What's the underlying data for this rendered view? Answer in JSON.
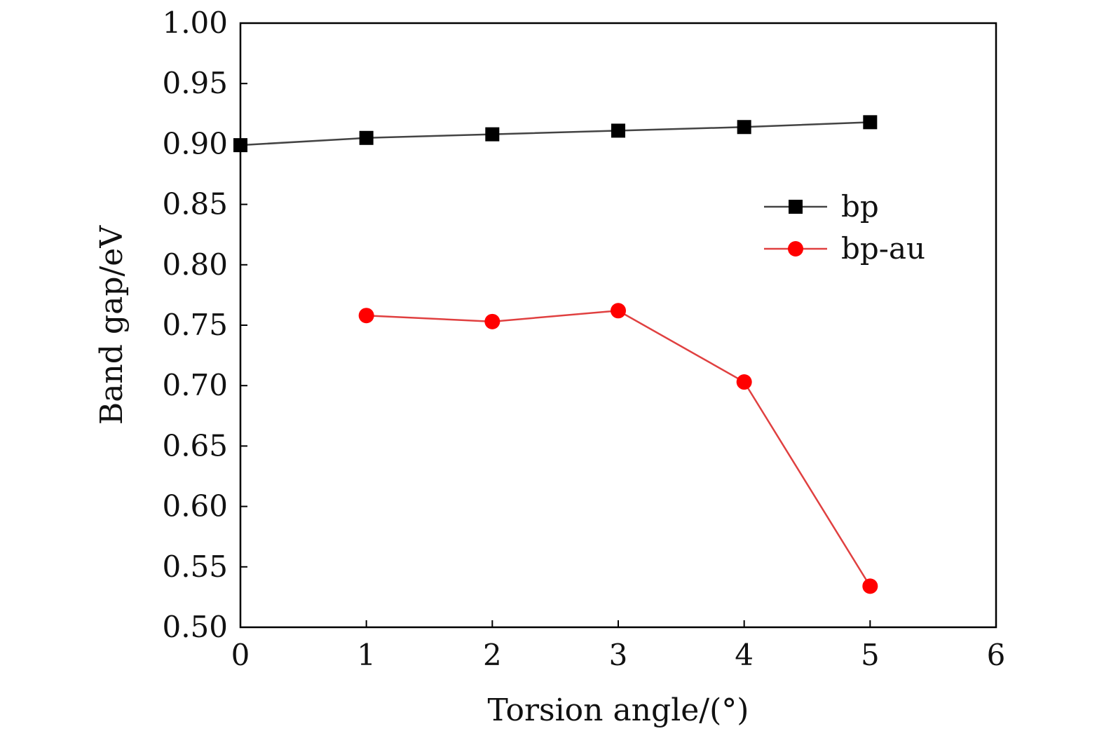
{
  "chart_data": {
    "type": "line",
    "title": "",
    "xlabel": "Torsion angle/(°)",
    "ylabel": "Band gap/eV",
    "xlim": [
      0,
      6
    ],
    "ylim": [
      0.5,
      1.0
    ],
    "x_ticks": [
      0,
      1,
      2,
      3,
      4,
      5,
      6
    ],
    "x_tick_labels": [
      "0",
      "1",
      "2",
      "3",
      "4",
      "5",
      "6"
    ],
    "y_ticks": [
      0.5,
      0.55,
      0.6,
      0.65,
      0.7,
      0.75,
      0.8,
      0.85,
      0.9,
      0.95,
      1.0
    ],
    "y_tick_labels": [
      "0.50",
      "0.55",
      "0.60",
      "0.65",
      "0.70",
      "0.75",
      "0.80",
      "0.85",
      "0.90",
      "0.95",
      "1.00"
    ],
    "grid": false,
    "legend_position": "top-right (inside)",
    "series": [
      {
        "name": "bp",
        "marker": "square",
        "color": "#000000",
        "line_color": "#444444",
        "x": [
          0,
          1,
          2,
          3,
          4,
          5
        ],
        "y": [
          0.899,
          0.905,
          0.908,
          0.911,
          0.914,
          0.918
        ]
      },
      {
        "name": "bp-au",
        "marker": "circle",
        "color": "#ff0000",
        "line_color": "#e04040",
        "x": [
          1,
          2,
          3,
          4,
          5
        ],
        "y": [
          0.758,
          0.753,
          0.762,
          0.703,
          0.534
        ]
      }
    ]
  }
}
